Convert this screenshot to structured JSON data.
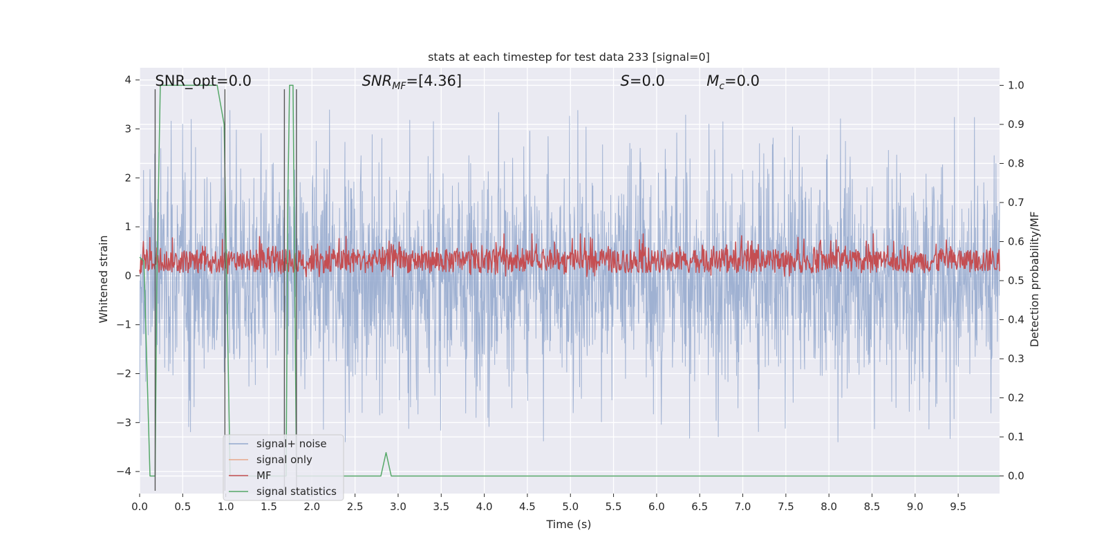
{
  "chart_data": {
    "type": "line",
    "title": "stats at each timestep for test data 233 [signal=0]",
    "xlabel": "Time (s)",
    "ylabel": "Whitened strain",
    "ylabel_right": "Detection probability/MF",
    "xlim": [
      0.0,
      9.98
    ],
    "ylim": [
      -4.45,
      4.25
    ],
    "ylim_right": [
      -0.045,
      1.045
    ],
    "xticks": [
      0.0,
      0.5,
      1.0,
      1.5,
      2.0,
      2.5,
      3.0,
      3.5,
      4.0,
      4.5,
      5.0,
      5.5,
      6.0,
      6.5,
      7.0,
      7.5,
      8.0,
      8.5,
      9.0,
      9.5
    ],
    "xtick_labels": [
      "0.0",
      "0.5",
      "1.0",
      "1.5",
      "2.0",
      "2.5",
      "3.0",
      "3.5",
      "4.0",
      "4.5",
      "5.0",
      "5.5",
      "6.0",
      "6.5",
      "7.0",
      "7.5",
      "8.0",
      "8.5",
      "9.0",
      "9.5"
    ],
    "yticks": [
      -4,
      -3,
      -2,
      -1,
      0,
      1,
      2,
      3,
      4
    ],
    "ytick_labels": [
      "−4",
      "−3",
      "−2",
      "−1",
      "0",
      "1",
      "2",
      "3",
      "4"
    ],
    "yticks_right": [
      0.0,
      0.1,
      0.2,
      0.3,
      0.4,
      0.5,
      0.6,
      0.7,
      0.8,
      0.9,
      1.0
    ],
    "ytick_labels_right": [
      "0.0",
      "0.1",
      "0.2",
      "0.3",
      "0.4",
      "0.5",
      "0.6",
      "0.7",
      "0.8",
      "0.9",
      "1.0"
    ],
    "grid": true,
    "legend_position": "lower-left",
    "annotations": [
      {
        "id": "snr-opt",
        "name": "SNR_opt",
        "value": "=0.0",
        "italic": false
      },
      {
        "id": "snr-mf",
        "name": "SNR",
        "sub": "MF",
        "value": "=[4.36]",
        "italic": true
      },
      {
        "id": "s",
        "name": "S",
        "value": "=0.0",
        "italic": true
      },
      {
        "id": "mc",
        "name": "M",
        "sub": "c",
        "value": "=0.0",
        "italic": true
      }
    ],
    "series": [
      {
        "name": "signal+ noise",
        "color": "#92a7cd",
        "axis": "left",
        "kind": "noise",
        "amplitude_envelope": 2.9,
        "x_range": [
          0.0,
          9.98
        ]
      },
      {
        "name": "signal only",
        "color": "#e8a88a",
        "axis": "left",
        "values": []
      },
      {
        "name": "MF",
        "color": "#c44e52",
        "axis": "right",
        "kind": "noise",
        "baseline": 0.55,
        "range": [
          0.51,
          0.62
        ],
        "x_range": [
          0.0,
          9.98
        ]
      },
      {
        "name": "signal statistics",
        "color": "#55a868",
        "axis": "right",
        "x": [
          0.0,
          0.05,
          0.12,
          0.18,
          0.2,
          0.24,
          0.9,
          0.98,
          1.05,
          1.7,
          1.72,
          1.74,
          1.78,
          1.82,
          1.88,
          2.8,
          2.86,
          2.92,
          9.98
        ],
        "values": [
          0.56,
          0.55,
          0.0,
          0.0,
          0.5,
          1.0,
          1.0,
          0.9,
          0.0,
          0.0,
          0.7,
          1.0,
          1.0,
          0.0,
          0.0,
          0.0,
          0.06,
          0.0,
          0.0
        ]
      }
    ],
    "vlines": [
      {
        "x": 0.18,
        "color": "#555555",
        "ymax": 0.99
      },
      {
        "x": 0.99,
        "color": "#555555",
        "ymax": 0.99
      },
      {
        "x": 1.68,
        "color": "#555555",
        "ymax": 0.99
      },
      {
        "x": 1.82,
        "color": "#555555",
        "ymax": 0.99
      }
    ]
  }
}
